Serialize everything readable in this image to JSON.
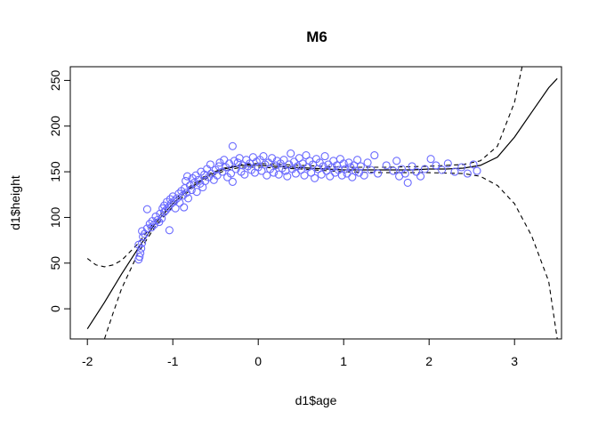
{
  "chart_data": {
    "type": "scatter",
    "title": "M6",
    "xlabel": "d1$age",
    "ylabel": "d1$height",
    "xlim": [
      -2.2,
      3.55
    ],
    "ylim": [
      -33,
      265
    ],
    "xticks": [
      -2,
      -1,
      0,
      1,
      2,
      3
    ],
    "yticks": [
      0,
      50,
      100,
      150,
      200,
      250
    ],
    "point_color": "#6b6bff",
    "line_color": "#000000",
    "points": [
      [
        -1.4,
        54
      ],
      [
        -1.39,
        57
      ],
      [
        -1.38,
        61
      ],
      [
        -1.4,
        70
      ],
      [
        -1.37,
        66
      ],
      [
        -1.36,
        72
      ],
      [
        -1.35,
        79
      ],
      [
        -1.36,
        85
      ],
      [
        -1.33,
        82
      ],
      [
        -1.3,
        88
      ],
      [
        -1.3,
        109
      ],
      [
        -1.27,
        93
      ],
      [
        -1.25,
        89
      ],
      [
        -1.24,
        96
      ],
      [
        -1.22,
        92
      ],
      [
        -1.2,
        101
      ],
      [
        -1.18,
        97
      ],
      [
        -1.16,
        95
      ],
      [
        -1.15,
        104
      ],
      [
        -1.13,
        99
      ],
      [
        -1.12,
        110
      ],
      [
        -1.1,
        106
      ],
      [
        -1.1,
        113
      ],
      [
        -1.08,
        108
      ],
      [
        -1.07,
        117
      ],
      [
        -1.05,
        111
      ],
      [
        -1.04,
        86
      ],
      [
        -1.03,
        120
      ],
      [
        -1.02,
        115
      ],
      [
        -1.0,
        123
      ],
      [
        -0.98,
        118
      ],
      [
        -0.97,
        110
      ],
      [
        -0.95,
        121
      ],
      [
        -0.93,
        126
      ],
      [
        -0.92,
        116
      ],
      [
        -0.9,
        129
      ],
      [
        -0.88,
        124
      ],
      [
        -0.87,
        111
      ],
      [
        -0.86,
        132
      ],
      [
        -0.85,
        140
      ],
      [
        -0.84,
        127
      ],
      [
        -0.83,
        145
      ],
      [
        -0.82,
        121
      ],
      [
        -0.8,
        135
      ],
      [
        -0.78,
        130
      ],
      [
        -0.77,
        143
      ],
      [
        -0.75,
        138
      ],
      [
        -0.73,
        146
      ],
      [
        -0.72,
        128
      ],
      [
        -0.7,
        141
      ],
      [
        -0.68,
        137
      ],
      [
        -0.67,
        150
      ],
      [
        -0.65,
        133
      ],
      [
        -0.63,
        147
      ],
      [
        -0.62,
        140
      ],
      [
        -0.6,
        153
      ],
      [
        -0.58,
        144
      ],
      [
        -0.56,
        158
      ],
      [
        -0.55,
        148
      ],
      [
        -0.52,
        141
      ],
      [
        -0.5,
        152
      ],
      [
        -0.48,
        146
      ],
      [
        -0.46,
        156
      ],
      [
        -0.45,
        160
      ],
      [
        -0.42,
        150
      ],
      [
        -0.4,
        163
      ],
      [
        -0.38,
        155
      ],
      [
        -0.36,
        144
      ],
      [
        -0.34,
        159
      ],
      [
        -0.32,
        148
      ],
      [
        -0.3,
        178
      ],
      [
        -0.3,
        139
      ],
      [
        -0.28,
        162
      ],
      [
        -0.26,
        153
      ],
      [
        -0.24,
        160
      ],
      [
        -0.22,
        165
      ],
      [
        -0.2,
        150
      ],
      [
        -0.18,
        157
      ],
      [
        -0.16,
        147
      ],
      [
        -0.14,
        163
      ],
      [
        -0.12,
        156
      ],
      [
        -0.1,
        159
      ],
      [
        -0.08,
        152
      ],
      [
        -0.06,
        166
      ],
      [
        -0.04,
        149
      ],
      [
        -0.02,
        161
      ],
      [
        0.0,
        155
      ],
      [
        0.02,
        163
      ],
      [
        0.04,
        151
      ],
      [
        0.06,
        167
      ],
      [
        0.08,
        158
      ],
      [
        0.1,
        146
      ],
      [
        0.12,
        160
      ],
      [
        0.14,
        153
      ],
      [
        0.16,
        165
      ],
      [
        0.18,
        149
      ],
      [
        0.2,
        157
      ],
      [
        0.22,
        162
      ],
      [
        0.24,
        147
      ],
      [
        0.26,
        159
      ],
      [
        0.28,
        154
      ],
      [
        0.3,
        163
      ],
      [
        0.32,
        151
      ],
      [
        0.34,
        145
      ],
      [
        0.36,
        158
      ],
      [
        0.38,
        170
      ],
      [
        0.4,
        153
      ],
      [
        0.42,
        161
      ],
      [
        0.44,
        148
      ],
      [
        0.46,
        156
      ],
      [
        0.48,
        165
      ],
      [
        0.5,
        152
      ],
      [
        0.52,
        159
      ],
      [
        0.54,
        146
      ],
      [
        0.56,
        168
      ],
      [
        0.58,
        155
      ],
      [
        0.6,
        162
      ],
      [
        0.62,
        149
      ],
      [
        0.64,
        158
      ],
      [
        0.66,
        143
      ],
      [
        0.68,
        164
      ],
      [
        0.7,
        153
      ],
      [
        0.72,
        160
      ],
      [
        0.74,
        147
      ],
      [
        0.76,
        156
      ],
      [
        0.78,
        167
      ],
      [
        0.8,
        151
      ],
      [
        0.82,
        158
      ],
      [
        0.84,
        145
      ],
      [
        0.86,
        155
      ],
      [
        0.88,
        162
      ],
      [
        0.9,
        149
      ],
      [
        0.92,
        157
      ],
      [
        0.94,
        152
      ],
      [
        0.96,
        164
      ],
      [
        0.98,
        146
      ],
      [
        1.0,
        159
      ],
      [
        1.02,
        153
      ],
      [
        1.04,
        148
      ],
      [
        1.06,
        160
      ],
      [
        1.08,
        155
      ],
      [
        1.1,
        144
      ],
      [
        1.12,
        157
      ],
      [
        1.14,
        151
      ],
      [
        1.16,
        163
      ],
      [
        1.18,
        149
      ],
      [
        1.2,
        156
      ],
      [
        1.24,
        146
      ],
      [
        1.28,
        160
      ],
      [
        1.32,
        152
      ],
      [
        1.36,
        168
      ],
      [
        1.4,
        148
      ],
      [
        1.5,
        157
      ],
      [
        1.58,
        151
      ],
      [
        1.62,
        162
      ],
      [
        1.65,
        145
      ],
      [
        1.68,
        153
      ],
      [
        1.72,
        148
      ],
      [
        1.75,
        138
      ],
      [
        1.8,
        156
      ],
      [
        1.85,
        150
      ],
      [
        1.9,
        145
      ],
      [
        1.95,
        153
      ],
      [
        2.02,
        164
      ],
      [
        2.08,
        157
      ],
      [
        2.15,
        152
      ],
      [
        2.22,
        159
      ],
      [
        2.3,
        150
      ],
      [
        2.38,
        155
      ],
      [
        2.45,
        148
      ],
      [
        2.52,
        158
      ],
      [
        2.56,
        151
      ]
    ],
    "series": [
      {
        "style": "solid",
        "x": [
          -2.0,
          -1.8,
          -1.6,
          -1.4,
          -1.2,
          -1.0,
          -0.8,
          -0.6,
          -0.4,
          -0.2,
          0.0,
          0.2,
          0.4,
          0.6,
          0.8,
          1.0,
          1.2,
          1.4,
          1.6,
          1.8,
          2.0,
          2.2,
          2.4,
          2.6,
          2.8,
          3.0,
          3.2,
          3.4,
          3.5
        ],
        "y": [
          -22,
          7,
          38,
          67,
          94,
          115,
          132,
          145,
          153,
          157,
          157,
          156,
          155,
          154,
          153,
          152,
          152,
          152,
          152,
          152,
          153,
          153,
          154,
          157,
          166,
          188,
          215,
          242,
          252
        ]
      },
      {
        "style": "dashed",
        "x": [
          -2.0,
          -1.9,
          -1.8,
          -1.7,
          -1.6,
          -1.4,
          -1.2,
          -1.0,
          -0.8,
          -0.6,
          -0.4,
          -0.2,
          0.0,
          0.5,
          1.0,
          1.5,
          2.0,
          2.4,
          2.6,
          2.8,
          3.0,
          3.1
        ],
        "y": [
          55,
          48,
          46,
          48,
          53,
          72,
          97,
          118,
          134,
          147,
          154,
          158,
          159,
          157,
          155,
          155,
          156,
          158,
          162,
          178,
          226,
          270
        ]
      },
      {
        "style": "dashed",
        "x": [
          -1.8,
          -1.7,
          -1.6,
          -1.4,
          -1.2,
          -1.0,
          -0.8,
          -0.6,
          -0.4,
          -0.2,
          0.0,
          0.5,
          1.0,
          1.5,
          2.0,
          2.4,
          2.6,
          2.8,
          3.0,
          3.2,
          3.4,
          3.5
        ],
        "y": [
          -33,
          -5,
          22,
          62,
          91,
          112,
          130,
          143,
          151,
          155,
          155,
          153,
          150,
          149,
          149,
          148,
          145,
          135,
          115,
          80,
          30,
          -33
        ]
      }
    ]
  }
}
